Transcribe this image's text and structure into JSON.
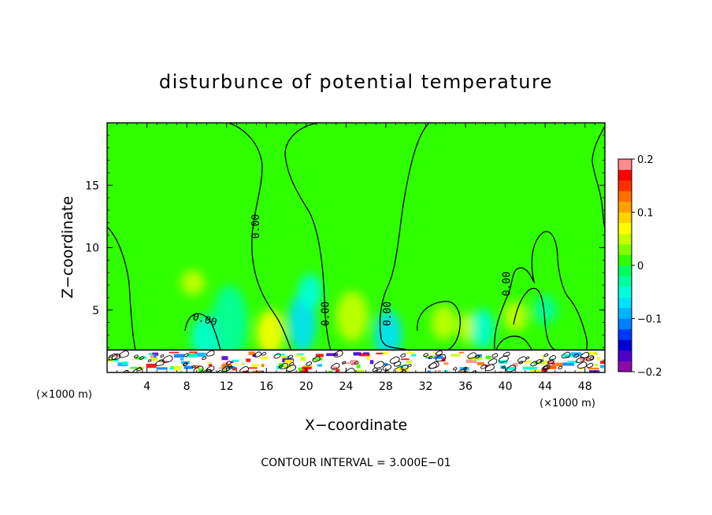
{
  "chart_data": {
    "type": "heatmap",
    "title": "disturbunce of potential temperature",
    "xlabel": "X−coordinate",
    "ylabel": "Z−coordinate",
    "x_unit_left": "(×1000 m)",
    "x_unit_right": "(×1000 m)",
    "contour_interval_text": "CONTOUR INTERVAL = 3.000E−01",
    "xlim": [
      0,
      50
    ],
    "ylim": [
      0,
      20
    ],
    "x_ticks": [
      4,
      8,
      12,
      16,
      20,
      24,
      28,
      32,
      36,
      40,
      44,
      48
    ],
    "x_tick_labels": [
      "4",
      "8",
      "12",
      "16",
      "20",
      "24",
      "28",
      "32",
      "36",
      "40",
      "44",
      "48"
    ],
    "y_ticks": [
      5,
      10,
      15
    ],
    "y_tick_labels": [
      "5",
      "10",
      "15"
    ],
    "colorbar": {
      "min": -0.2,
      "max": 0.2,
      "tick_values": [
        0.2,
        0.1,
        0,
        -0.1,
        -0.2
      ],
      "tick_labels": [
        "0.2",
        "0.1",
        "0",
        "−0.1",
        "−0.2"
      ],
      "colors": [
        "#8b0aa6",
        "#4a00c8",
        "#0000d2",
        "#0038ff",
        "#0080ff",
        "#00b4ff",
        "#00e0ff",
        "#00ffdc",
        "#00ffa0",
        "#00ff60",
        "#30ff00",
        "#80ff00",
        "#c8ff00",
        "#ffff00",
        "#ffd200",
        "#ffa000",
        "#ff7000",
        "#ff3000",
        "#ff0000",
        "#ff8c8c"
      ]
    },
    "contour_labels": [
      {
        "text": "0.00",
        "x": 15.0,
        "z": 11.7,
        "angle": -90
      },
      {
        "text": "0.00",
        "x": 9.8,
        "z": 4.2,
        "angle": 15
      },
      {
        "text": "0.00",
        "x": 22.0,
        "z": 4.7,
        "angle": -90
      },
      {
        "text": "0.00",
        "x": 28.2,
        "z": 4.7,
        "angle": -90
      },
      {
        "text": "0.00",
        "x": 40.2,
        "z": 7.1,
        "angle": -90
      }
    ],
    "background_value": 0.02,
    "blobs": [
      {
        "x": 10.0,
        "z": 2.8,
        "rx": 1.6,
        "rz": 1.8,
        "v": -0.06
      },
      {
        "x": 8.6,
        "z": 7.2,
        "rx": 1.2,
        "rz": 1.0,
        "v": 0.04
      },
      {
        "x": 12.3,
        "z": 4.0,
        "rx": 1.8,
        "rz": 3.0,
        "v": -0.03
      },
      {
        "x": 16.4,
        "z": 3.2,
        "rx": 1.4,
        "rz": 1.8,
        "v": 0.07
      },
      {
        "x": 19.6,
        "z": 4.0,
        "rx": 1.4,
        "rz": 2.4,
        "v": -0.08
      },
      {
        "x": 20.4,
        "z": 6.5,
        "rx": 1.2,
        "rz": 1.4,
        "v": -0.04
      },
      {
        "x": 24.6,
        "z": 4.5,
        "rx": 1.6,
        "rz": 2.0,
        "v": 0.05
      },
      {
        "x": 28.2,
        "z": 3.0,
        "rx": 1.4,
        "rz": 2.0,
        "v": -0.07
      },
      {
        "x": 33.8,
        "z": 4.0,
        "rx": 1.2,
        "rz": 1.4,
        "v": 0.05
      },
      {
        "x": 37.7,
        "z": 3.5,
        "rx": 1.2,
        "rz": 1.6,
        "v": -0.06
      },
      {
        "x": 36.0,
        "z": 3.6,
        "rx": 0.8,
        "rz": 1.2,
        "v": 0.04
      },
      {
        "x": 41.0,
        "z": 4.5,
        "rx": 1.2,
        "rz": 1.2,
        "v": 0.04
      },
      {
        "x": 44.0,
        "z": 5.0,
        "rx": 1.2,
        "rz": 1.2,
        "v": -0.03
      }
    ],
    "surface_layer_top_z": 1.8
  }
}
